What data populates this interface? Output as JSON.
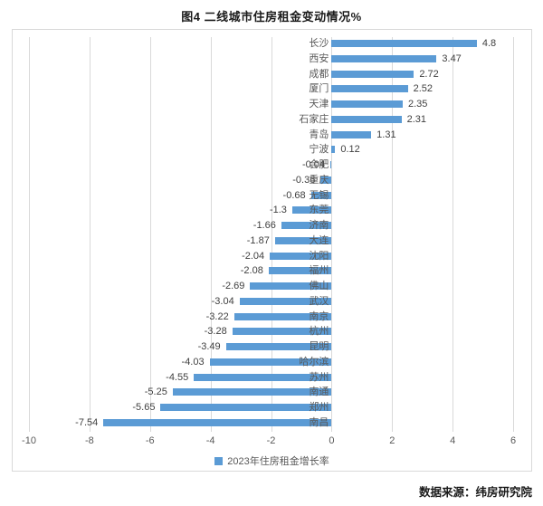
{
  "title": "图4  二线城市住房租金变动情况%",
  "source_note": "数据来源：纬房研究院",
  "legend": {
    "label": "2023年住房租金增长率",
    "swatch_color": "#5b9bd5"
  },
  "colors": {
    "bar": "#5b9bd5",
    "grid": "#d9d9d9",
    "axis_text": "#595959",
    "value_text": "#404040",
    "title_text": "#1a1a1a"
  },
  "chart_data": {
    "type": "bar",
    "orientation": "horizontal",
    "title": "图4  二线城市住房租金变动情况%",
    "legend_entries": [
      "2023年住房租金增长率"
    ],
    "legend_position": "bottom",
    "grid": "vertical",
    "xlim": [
      -10,
      6
    ],
    "x_ticks": [
      -10,
      -8,
      -6,
      -4,
      -2,
      0,
      2,
      4,
      6
    ],
    "categories": [
      "长沙",
      "西安",
      "成都",
      "厦门",
      "天津",
      "石家庄",
      "青岛",
      "宁波",
      "合肥",
      "重庆",
      "无锡",
      "东莞",
      "济南",
      "大连",
      "沈阳",
      "福州",
      "佛山",
      "武汉",
      "南京",
      "杭州",
      "昆明",
      "哈尔滨",
      "苏州",
      "南通",
      "郑州",
      "南昌"
    ],
    "values": [
      4.8,
      3.47,
      2.72,
      2.52,
      2.35,
      2.31,
      1.31,
      0.12,
      -0.04,
      -0.36,
      -0.68,
      -1.3,
      -1.66,
      -1.87,
      -2.04,
      -2.08,
      -2.69,
      -3.04,
      -3.22,
      -3.28,
      -3.49,
      -4.03,
      -4.55,
      -5.25,
      -5.65,
      -7.54
    ],
    "value_labels": [
      "4.8",
      "3.47",
      "2.72",
      "2.52",
      "2.35",
      "2.31",
      "1.31",
      "0.12",
      "-0.04",
      "-0.36",
      "-0.68",
      "-1.3",
      "-1.66",
      "-1.87",
      "-2.04",
      "-2.08",
      "-2.69",
      "-3.04",
      "-3.22",
      "-3.28",
      "-3.49",
      "-4.03",
      "-4.55",
      "-5.25",
      "-5.65",
      "-7.54"
    ]
  }
}
